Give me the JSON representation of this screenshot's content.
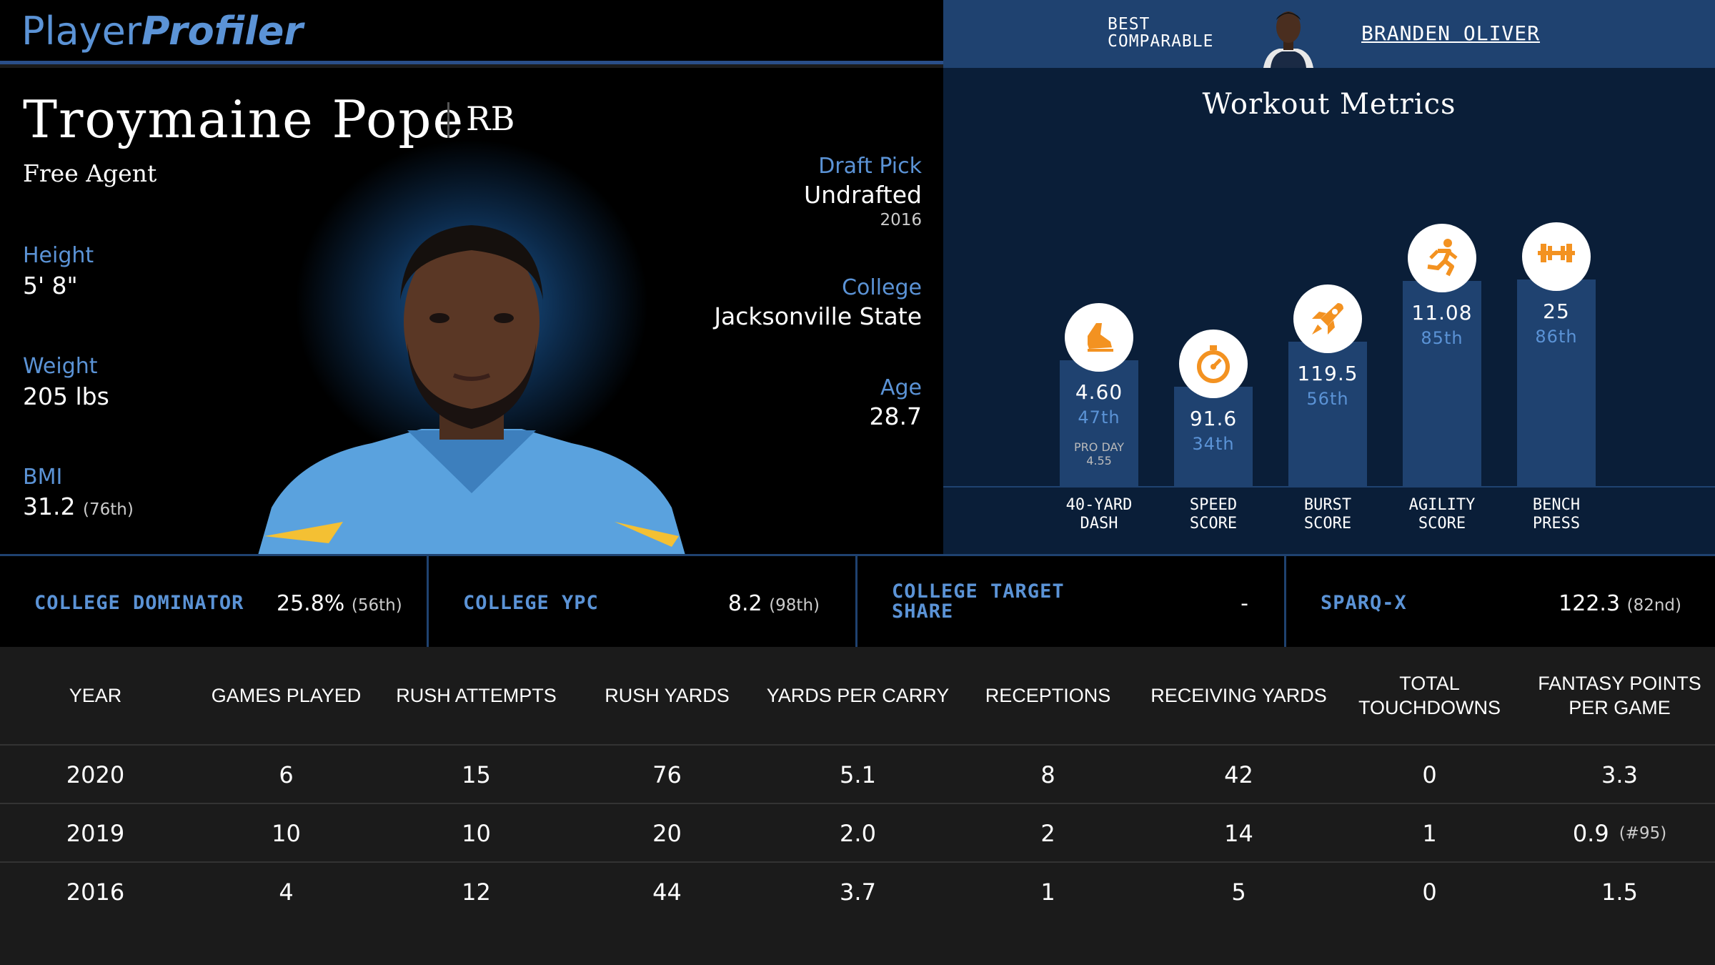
{
  "brand": {
    "part1": "Player",
    "part2": "Profiler"
  },
  "comparable": {
    "label_line1": "BEST",
    "label_line2": "COMPARABLE",
    "name": "BRANDEN OLIVER"
  },
  "player": {
    "name": "Troymaine Pope",
    "position": "RB",
    "team": "Free Agent",
    "height_label": "Height",
    "height": "5' 8\"",
    "weight_label": "Weight",
    "weight": "205 lbs",
    "bmi_label": "BMI",
    "bmi": "31.2",
    "bmi_rank": "(76th)",
    "draft_label": "Draft Pick",
    "draft": "Undrafted",
    "draft_year": "2016",
    "college_label": "College",
    "college": "Jacksonville State",
    "age_label": "Age",
    "age": "28.7"
  },
  "workout": {
    "title": "Workout Metrics",
    "metrics": [
      {
        "line1": "40-YARD",
        "line2": "DASH",
        "value": "4.60",
        "percentile": "47th",
        "percentile_num": 47,
        "extra1": "PRO DAY",
        "extra2": "4.55",
        "icon": "shoe-icon"
      },
      {
        "line1": "SPEED",
        "line2": "SCORE",
        "value": "91.6",
        "percentile": "34th",
        "percentile_num": 34,
        "icon": "stopwatch-icon"
      },
      {
        "line1": "BURST",
        "line2": "SCORE",
        "value": "119.5",
        "percentile": "56th",
        "percentile_num": 56,
        "icon": "rocket-icon"
      },
      {
        "line1": "AGILITY",
        "line2": "SCORE",
        "value": "11.08",
        "percentile": "85th",
        "percentile_num": 85,
        "icon": "runner-icon"
      },
      {
        "line1": "BENCH",
        "line2": "PRESS",
        "value": "25",
        "percentile": "86th",
        "percentile_num": 86,
        "icon": "dumbbell-icon"
      }
    ]
  },
  "strip": [
    {
      "label": "COLLEGE DOMINATOR",
      "value": "25.8%",
      "rank": "(56th)"
    },
    {
      "label": "COLLEGE YPC",
      "value": "8.2",
      "rank": "(98th)"
    },
    {
      "label_line1": "COLLEGE TARGET",
      "label_line2": "SHARE",
      "value": "-"
    },
    {
      "label": "SPARQ-X",
      "value": "122.3",
      "rank": "(82nd)"
    }
  ],
  "table": {
    "headers": [
      "YEAR",
      "GAMES PLAYED",
      "RUSH ATTEMPTS",
      "RUSH YARDS",
      "YARDS PER CARRY",
      "RECEPTIONS",
      "RECEIVING YARDS",
      "TOTAL TOUCHDOWNS",
      "FANTASY POINTS PER GAME"
    ],
    "rows": [
      {
        "cells": [
          "2020",
          "6",
          "15",
          "76",
          "5.1",
          "8",
          "42",
          "0",
          "3.3"
        ],
        "rank": ""
      },
      {
        "cells": [
          "2019",
          "10",
          "10",
          "20",
          "2.0",
          "2",
          "14",
          "1",
          "0.9"
        ],
        "rank": "(#95)"
      },
      {
        "cells": [
          "2016",
          "4",
          "12",
          "44",
          "3.7",
          "1",
          "5",
          "0",
          "1.5"
        ],
        "rank": ""
      }
    ]
  },
  "colors": {
    "accent": "#5b93d6",
    "navy": "#1f4270",
    "orange": "#f39221"
  }
}
